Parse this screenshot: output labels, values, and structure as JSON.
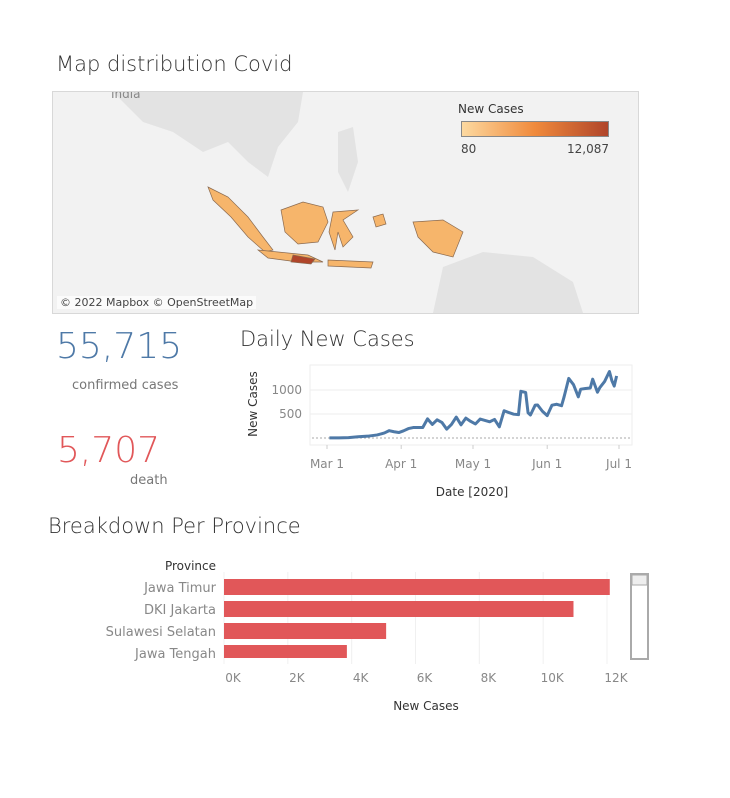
{
  "map": {
    "title": "Map distribution Covid",
    "attribution": "© 2022 Mapbox © OpenStreetMap",
    "background_label": "India",
    "legend": {
      "title": "New Cases",
      "min": "80",
      "max": "12,087",
      "colors": [
        "#fcd9a0",
        "#f08a3c",
        "#b0452a"
      ]
    }
  },
  "kpis": {
    "confirmed": {
      "value": "55,715",
      "label": "confirmed cases",
      "color": "#4e79a7"
    },
    "death": {
      "value": "5,707",
      "label": "death",
      "color": "#e15759"
    }
  },
  "daily": {
    "title": "Daily New Cases",
    "chart_data": {
      "type": "line",
      "xlabel": "Date [2020]",
      "ylabel": "New Cases",
      "yticks": [
        500,
        1000
      ],
      "xticks": [
        "Mar 1",
        "Apr 1",
        "May 1",
        "Jun 1",
        "Jul 1"
      ],
      "color": "#4e79a7",
      "points": [
        [
          "2020-03-02",
          2
        ],
        [
          "2020-03-06",
          2
        ],
        [
          "2020-03-10",
          8
        ],
        [
          "2020-03-14",
          27
        ],
        [
          "2020-03-18",
          38
        ],
        [
          "2020-03-22",
          64
        ],
        [
          "2020-03-25",
          105
        ],
        [
          "2020-03-27",
          153
        ],
        [
          "2020-03-29",
          130
        ],
        [
          "2020-03-31",
          114
        ],
        [
          "2020-04-02",
          150
        ],
        [
          "2020-04-04",
          196
        ],
        [
          "2020-04-06",
          218
        ],
        [
          "2020-04-08",
          218
        ],
        [
          "2020-04-10",
          219
        ],
        [
          "2020-04-12",
          399
        ],
        [
          "2020-04-14",
          282
        ],
        [
          "2020-04-16",
          380
        ],
        [
          "2020-04-18",
          325
        ],
        [
          "2020-04-20",
          185
        ],
        [
          "2020-04-22",
          283
        ],
        [
          "2020-04-24",
          436
        ],
        [
          "2020-04-26",
          275
        ],
        [
          "2020-04-28",
          415
        ],
        [
          "2020-04-30",
          347
        ],
        [
          "2020-05-02",
          292
        ],
        [
          "2020-05-04",
          395
        ],
        [
          "2020-05-06",
          367
        ],
        [
          "2020-05-08",
          338
        ],
        [
          "2020-05-10",
          387
        ],
        [
          "2020-05-12",
          233
        ],
        [
          "2020-05-14",
          568
        ],
        [
          "2020-05-16",
          529
        ],
        [
          "2020-05-18",
          496
        ],
        [
          "2020-05-20",
          486
        ],
        [
          "2020-05-21",
          973
        ],
        [
          "2020-05-23",
          949
        ],
        [
          "2020-05-24",
          526
        ],
        [
          "2020-05-25",
          479
        ],
        [
          "2020-05-27",
          686
        ],
        [
          "2020-05-28",
          687
        ],
        [
          "2020-05-30",
          557
        ],
        [
          "2020-06-01",
          467
        ],
        [
          "2020-06-03",
          684
        ],
        [
          "2020-06-05",
          703
        ],
        [
          "2020-06-07",
          672
        ],
        [
          "2020-06-08",
          847
        ],
        [
          "2020-06-09",
          1043
        ],
        [
          "2020-06-10",
          1241
        ],
        [
          "2020-06-12",
          1111
        ],
        [
          "2020-06-14",
          857
        ],
        [
          "2020-06-15",
          1017
        ],
        [
          "2020-06-17",
          1031
        ],
        [
          "2020-06-19",
          1041
        ],
        [
          "2020-06-20",
          1226
        ],
        [
          "2020-06-22",
          954
        ],
        [
          "2020-06-23",
          1051
        ],
        [
          "2020-06-25",
          1178
        ],
        [
          "2020-06-27",
          1385
        ],
        [
          "2020-06-28",
          1198
        ],
        [
          "2020-06-29",
          1082
        ],
        [
          "2020-06-30",
          1293
        ]
      ]
    }
  },
  "province": {
    "title": "Breakdown Per Province",
    "chart_data": {
      "type": "bar",
      "orientation": "horizontal",
      "category_header": "Province",
      "categories": [
        "Jawa Timur",
        "DKI Jakarta",
        "Sulawesi Selatan",
        "Jawa Tengah"
      ],
      "values": [
        12087,
        10950,
        5080,
        3850
      ],
      "xlabel": "New Cases",
      "xticks": [
        "0K",
        "2K",
        "4K",
        "6K",
        "8K",
        "10K",
        "12K"
      ],
      "xlim": [
        0,
        12000
      ],
      "color": "#e15759"
    }
  }
}
